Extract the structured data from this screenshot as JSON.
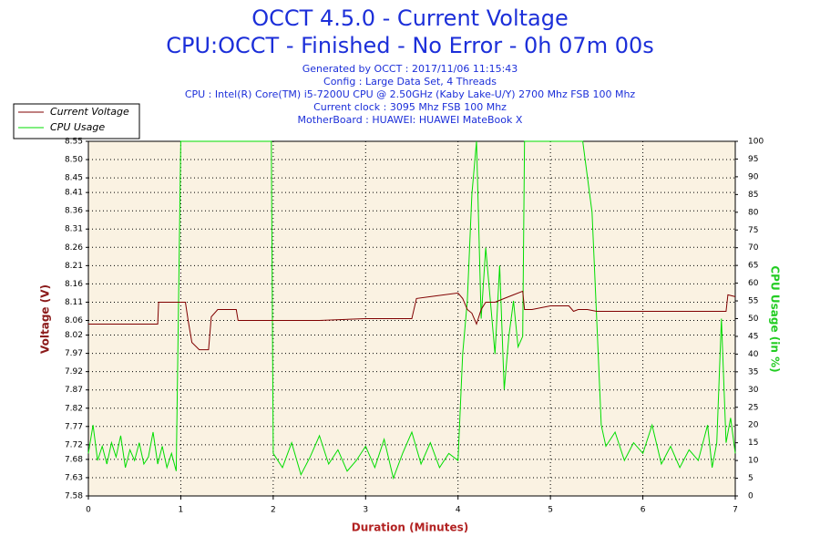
{
  "chart_data": {
    "type": "line",
    "title": "OCCT 4.5.0 - Current Voltage",
    "subtitle": "CPU:OCCT - Finished - No Error - 0h 07m 00s",
    "info": [
      "Generated by OCCT : 2017/11/06 11:15:43",
      "Config : Large Data Set, 4 Threads",
      "CPU : Intel(R) Core(TM) i5-7200U CPU @ 2.50GHz (Kaby Lake-U/Y) 2700 Mhz FSB 100 Mhz",
      "Current clock : 3095 Mhz FSB 100 Mhz",
      "MotherBoard : HUAWEI: HUAWEI MateBook X"
    ],
    "xlabel": "Duration (Minutes)",
    "ylabel": "Voltage (V)",
    "y2label": "CPU Usage (in %)",
    "xlim": [
      0,
      7
    ],
    "xticks": [
      0,
      1,
      2,
      3,
      4,
      5,
      6,
      7
    ],
    "ylim": [
      7.58,
      8.55
    ],
    "yticks": [
      7.58,
      7.63,
      7.68,
      7.72,
      7.77,
      7.82,
      7.87,
      7.92,
      7.97,
      8.02,
      8.06,
      8.11,
      8.16,
      8.21,
      8.26,
      8.31,
      8.36,
      8.41,
      8.45,
      {
        "value": 8.5,
        "label": "8.50"
      },
      8.55
    ],
    "y2lim": [
      0,
      100
    ],
    "y2ticks": [
      0,
      5,
      10,
      15,
      20,
      25,
      30,
      35,
      40,
      45,
      50,
      55,
      60,
      65,
      70,
      75,
      80,
      85,
      90,
      95,
      100
    ],
    "grid": true,
    "legend": "top-left",
    "series": [
      {
        "name": "Current Voltage",
        "color": "#800000",
        "x": [
          0,
          0.75,
          0.76,
          1.05,
          1.08,
          1.12,
          1.2,
          1.3,
          1.33,
          1.4,
          1.6,
          1.62,
          2,
          2.5,
          3,
          3.5,
          3.55,
          3.7,
          4.0,
          4.05,
          4.1,
          4.15,
          4.2,
          4.25,
          4.3,
          4.4,
          4.5,
          4.6,
          4.7,
          4.72,
          4.8,
          5.0,
          5.1,
          5.2,
          5.25,
          5.3,
          5.4,
          5.5,
          6.0,
          6.9,
          6.92,
          7.0
        ],
        "values": [
          8.05,
          8.05,
          8.11,
          8.11,
          8.06,
          8.0,
          7.98,
          7.98,
          8.07,
          8.09,
          8.09,
          8.06,
          8.06,
          8.06,
          8.065,
          8.065,
          8.12,
          8.125,
          8.135,
          8.12,
          8.09,
          8.08,
          8.05,
          8.09,
          8.11,
          8.11,
          8.12,
          8.13,
          8.14,
          8.09,
          8.09,
          8.1,
          8.1,
          8.1,
          8.085,
          8.09,
          8.09,
          8.085,
          8.085,
          8.085,
          8.13,
          8.125
        ]
      },
      {
        "name": "CPU Usage",
        "color": "#00dd00",
        "axis": "y2",
        "x": [
          0,
          0.05,
          0.1,
          0.15,
          0.2,
          0.25,
          0.3,
          0.35,
          0.4,
          0.45,
          0.5,
          0.55,
          0.6,
          0.65,
          0.7,
          0.75,
          0.8,
          0.85,
          0.9,
          0.95,
          1.0,
          1.98,
          2.0,
          2.1,
          2.2,
          2.3,
          2.4,
          2.5,
          2.6,
          2.7,
          2.8,
          2.9,
          3.0,
          3.1,
          3.2,
          3.3,
          3.4,
          3.5,
          3.6,
          3.7,
          3.8,
          3.9,
          4.0,
          4.05,
          4.1,
          4.15,
          4.2,
          4.25,
          4.3,
          4.35,
          4.4,
          4.45,
          4.5,
          4.55,
          4.6,
          4.65,
          4.7,
          4.72,
          5.35,
          5.4,
          5.45,
          5.5,
          5.55,
          5.6,
          5.7,
          5.8,
          5.9,
          6.0,
          6.1,
          6.2,
          6.3,
          6.4,
          6.5,
          6.6,
          6.7,
          6.75,
          6.8,
          6.85,
          6.9,
          6.95,
          7.0
        ],
        "values": [
          12,
          20,
          10,
          14,
          9,
          15,
          11,
          17,
          8,
          13,
          10,
          15,
          9,
          11,
          18,
          9,
          14,
          8,
          12,
          7,
          100,
          100,
          12,
          8,
          15,
          6,
          11,
          17,
          9,
          13,
          7,
          10,
          14,
          8,
          16,
          5,
          12,
          18,
          9,
          15,
          8,
          12,
          10,
          40,
          55,
          85,
          100,
          50,
          70,
          55,
          40,
          65,
          30,
          45,
          55,
          42,
          45,
          100,
          100,
          90,
          80,
          50,
          20,
          14,
          18,
          10,
          15,
          12,
          20,
          9,
          14,
          8,
          13,
          10,
          20,
          8,
          15,
          50,
          15,
          22,
          12
        ]
      }
    ]
  }
}
